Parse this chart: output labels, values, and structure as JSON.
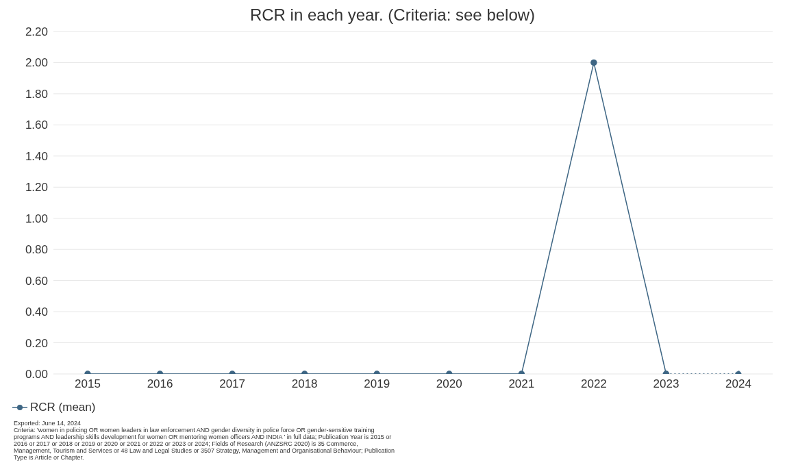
{
  "chart_data": {
    "type": "line",
    "title": "RCR in each year. (Criteria: see below)",
    "categories": [
      "2015",
      "2016",
      "2017",
      "2018",
      "2019",
      "2020",
      "2021",
      "2022",
      "2023",
      "2024"
    ],
    "series": [
      {
        "name": "RCR (mean)",
        "color": "#3e6684",
        "values": [
          0,
          0,
          0,
          0,
          0,
          0,
          0,
          2,
          0,
          null
        ]
      },
      {
        "color": "#3e6684",
        "line_style": "dotted",
        "values": [
          null,
          null,
          null,
          null,
          null,
          null,
          null,
          null,
          0,
          0
        ]
      }
    ],
    "ylim": [
      0,
      2.2
    ],
    "yticks": [
      {
        "value": 0,
        "label": "0.00"
      },
      {
        "value": 0.2,
        "label": "0.20"
      },
      {
        "value": 0.4,
        "label": "0.40"
      },
      {
        "value": 0.6,
        "label": "0.60"
      },
      {
        "value": 0.8,
        "label": "0.80"
      },
      {
        "value": 1,
        "label": "1.00"
      },
      {
        "value": 1.2,
        "label": "1.20"
      },
      {
        "value": 1.4,
        "label": "1.40"
      },
      {
        "value": 1.6,
        "label": "1.60"
      },
      {
        "value": 1.8,
        "label": "1.80"
      },
      {
        "value": 2,
        "label": "2.00"
      },
      {
        "value": 2.2,
        "label": "2.20"
      }
    ],
    "grid": "y",
    "legend": "bottom left",
    "marker": "circle",
    "line_style": "solid",
    "annotations": [
      "Exported: June 14, 2024",
      "Criteria: 'women in policing OR women leaders in law enforcement AND gender diversity in police force OR gender-sensitive training programs AND leadership skills development for women OR mentoring women officers AND INDIA ' in full data; Publication Year is 2015 or 2016 or 2017 or 2018 or 2019 or 2020 or 2021 or 2022 or 2023 or 2024; Fields of Research (ANZSRC 2020) is 35 Commerce, Management, Tourism and Services or 48 Law and Legal Studies or 3507 Strategy, Management and Organisational Behaviour; Publication Type is Article or Chapter."
    ]
  }
}
